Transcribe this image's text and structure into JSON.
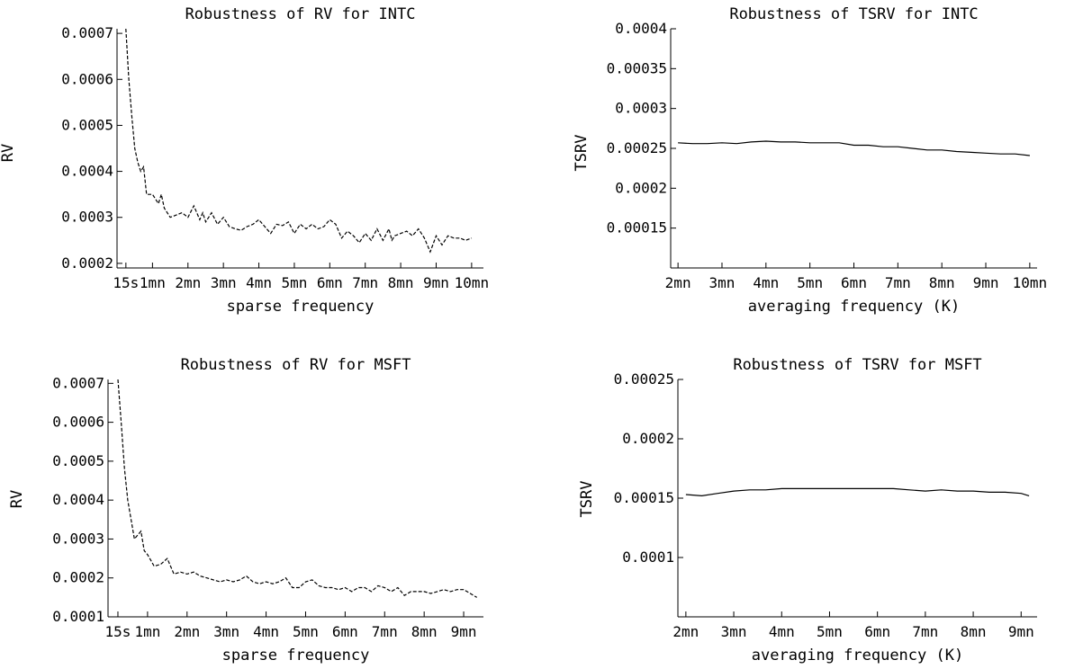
{
  "chart_data": [
    {
      "type": "line",
      "title": "Robustness of RV for INTC",
      "xlabel": "sparse frequency",
      "ylabel": "RV",
      "x_ticks": [
        "15s",
        "1mn",
        "2mn",
        "3mn",
        "4mn",
        "5mn",
        "6mn",
        "7mn",
        "8mn",
        "9mn",
        "10mn"
      ],
      "x_tick_values": [
        15,
        60,
        120,
        180,
        240,
        300,
        360,
        420,
        480,
        540,
        600
      ],
      "y_ticks": [
        "0.0002",
        "0.0003",
        "0.0004",
        "0.0005",
        "0.0006",
        "0.0007"
      ],
      "y_tick_values": [
        0.0002,
        0.0003,
        0.0004,
        0.0005,
        0.0006,
        0.0007
      ],
      "xlim": [
        0,
        620
      ],
      "ylim": [
        0.00019,
        0.00071
      ],
      "line_style": "dashed",
      "series": [
        {
          "x": [
            15,
            20,
            25,
            30,
            35,
            40,
            45,
            50,
            55,
            60,
            65,
            70,
            75,
            80,
            90,
            100,
            110,
            120,
            130,
            140,
            145,
            150,
            155,
            160,
            170,
            180,
            190,
            200,
            210,
            220,
            230,
            240,
            250,
            260,
            270,
            280,
            290,
            300,
            310,
            320,
            330,
            340,
            350,
            360,
            370,
            380,
            390,
            400,
            410,
            420,
            430,
            440,
            450,
            460,
            465,
            470,
            480,
            490,
            500,
            510,
            520,
            530,
            540,
            550,
            560,
            570,
            580,
            590,
            600
          ],
          "y": [
            0.00071,
            0.0006,
            0.00052,
            0.00045,
            0.00042,
            0.0004,
            0.00041,
            0.00035,
            0.00035,
            0.00035,
            0.00034,
            0.00033,
            0.00035,
            0.00032,
            0.0003,
            0.000305,
            0.00031,
            0.0003,
            0.000325,
            0.000295,
            0.00031,
            0.00029,
            0.0003,
            0.00031,
            0.000285,
            0.0003,
            0.00028,
            0.000275,
            0.000272,
            0.00028,
            0.000285,
            0.000295,
            0.00028,
            0.000265,
            0.000285,
            0.000282,
            0.00029,
            0.000265,
            0.000285,
            0.000275,
            0.000285,
            0.000275,
            0.00028,
            0.000295,
            0.000285,
            0.000255,
            0.00027,
            0.00026,
            0.000245,
            0.000265,
            0.00025,
            0.000275,
            0.00025,
            0.000275,
            0.00025,
            0.00026,
            0.000265,
            0.00027,
            0.00026,
            0.000275,
            0.000255,
            0.000225,
            0.00026,
            0.00024,
            0.00026,
            0.000255,
            0.000255,
            0.00025,
            0.000255
          ]
        }
      ]
    },
    {
      "type": "line",
      "title": "Robustness of TSRV for INTC",
      "xlabel": "averaging frequency (K)",
      "ylabel": "TSRV",
      "x_ticks": [
        "2mn",
        "3mn",
        "4mn",
        "5mn",
        "6mn",
        "7mn",
        "8mn",
        "9mn",
        "10mn"
      ],
      "x_tick_values": [
        120,
        180,
        240,
        300,
        360,
        420,
        480,
        540,
        600
      ],
      "y_ticks": [
        "0.00015",
        "0.0002",
        "0.00025",
        "0.0003",
        "0.00035",
        "0.0004"
      ],
      "y_tick_values": [
        0.00015,
        0.0002,
        0.00025,
        0.0003,
        0.00035,
        0.0004
      ],
      "xlim": [
        110,
        610
      ],
      "ylim": [
        0.0001,
        0.0004
      ],
      "line_style": "solid",
      "series": [
        {
          "x": [
            120,
            140,
            160,
            180,
            200,
            220,
            240,
            260,
            280,
            300,
            320,
            340,
            360,
            380,
            400,
            420,
            440,
            460,
            480,
            500,
            520,
            540,
            560,
            580,
            600
          ],
          "y": [
            0.000257,
            0.000256,
            0.000256,
            0.000257,
            0.000256,
            0.000258,
            0.000259,
            0.000258,
            0.000258,
            0.000257,
            0.000257,
            0.000257,
            0.000254,
            0.000254,
            0.000252,
            0.000252,
            0.00025,
            0.000248,
            0.000248,
            0.000246,
            0.000245,
            0.000244,
            0.000243,
            0.000243,
            0.000241
          ]
        }
      ]
    },
    {
      "type": "line",
      "title": "Robustness of RV for MSFT",
      "xlabel": "sparse frequency",
      "ylabel": "RV",
      "x_ticks": [
        "15s",
        "1mn",
        "2mn",
        "3mn",
        "4mn",
        "5mn",
        "6mn",
        "7mn",
        "8mn",
        "9mn"
      ],
      "x_tick_values": [
        15,
        60,
        120,
        180,
        240,
        300,
        360,
        420,
        480,
        540
      ],
      "y_ticks": [
        "0.0001",
        "0.0002",
        "0.0003",
        "0.0004",
        "0.0005",
        "0.0006",
        "0.0007"
      ],
      "y_tick_values": [
        0.0001,
        0.0002,
        0.0003,
        0.0004,
        0.0005,
        0.0006,
        0.0007
      ],
      "xlim": [
        0,
        570
      ],
      "ylim": [
        0.0001,
        0.00071
      ],
      "line_style": "dashed",
      "series": [
        {
          "x": [
            15,
            20,
            25,
            30,
            35,
            40,
            45,
            50,
            55,
            60,
            65,
            70,
            80,
            90,
            100,
            110,
            120,
            130,
            140,
            150,
            160,
            170,
            180,
            190,
            200,
            210,
            220,
            230,
            240,
            250,
            260,
            270,
            280,
            290,
            300,
            310,
            320,
            330,
            340,
            350,
            360,
            370,
            380,
            390,
            400,
            410,
            420,
            430,
            440,
            450,
            460,
            470,
            480,
            490,
            500,
            510,
            520,
            530,
            540,
            550,
            560
          ],
          "y": [
            0.00071,
            0.0006,
            0.00048,
            0.0004,
            0.00035,
            0.0003,
            0.00031,
            0.00032,
            0.00027,
            0.00026,
            0.000245,
            0.00023,
            0.000235,
            0.00025,
            0.00021,
            0.000215,
            0.00021,
            0.000215,
            0.000205,
            0.0002,
            0.000195,
            0.00019,
            0.000195,
            0.00019,
            0.000195,
            0.000205,
            0.00019,
            0.000185,
            0.00019,
            0.000185,
            0.00019,
            0.0002,
            0.000175,
            0.000175,
            0.00019,
            0.000195,
            0.00018,
            0.000175,
            0.000175,
            0.00017,
            0.000175,
            0.000165,
            0.000175,
            0.000175,
            0.000165,
            0.00018,
            0.000175,
            0.000165,
            0.000175,
            0.000155,
            0.000165,
            0.000165,
            0.000165,
            0.00016,
            0.000165,
            0.00017,
            0.000165,
            0.00017,
            0.00017,
            0.00016,
            0.00015
          ]
        }
      ]
    },
    {
      "type": "line",
      "title": "Robustness of TSRV for MSFT",
      "xlabel": "averaging frequency (K)",
      "ylabel": "TSRV",
      "x_ticks": [
        "2mn",
        "3mn",
        "4mn",
        "5mn",
        "6mn",
        "7mn",
        "8mn",
        "9mn"
      ],
      "x_tick_values": [
        120,
        180,
        240,
        300,
        360,
        420,
        480,
        540
      ],
      "y_ticks": [
        "0.0001",
        "0.00015",
        "0.0002",
        "0.00025"
      ],
      "y_tick_values": [
        0.0001,
        0.00015,
        0.0002,
        0.00025
      ],
      "xlim": [
        110,
        560
      ],
      "ylim": [
        5e-05,
        0.00025
      ],
      "line_style": "solid",
      "series": [
        {
          "x": [
            120,
            140,
            160,
            180,
            200,
            220,
            240,
            260,
            280,
            300,
            320,
            340,
            360,
            380,
            400,
            420,
            440,
            460,
            480,
            500,
            520,
            540,
            550
          ],
          "y": [
            0.000153,
            0.000152,
            0.000154,
            0.000156,
            0.000157,
            0.000157,
            0.000158,
            0.000158,
            0.000158,
            0.000158,
            0.000158,
            0.000158,
            0.000158,
            0.000158,
            0.000157,
            0.000156,
            0.000157,
            0.000156,
            0.000156,
            0.000155,
            0.000155,
            0.000154,
            0.000152
          ]
        }
      ]
    }
  ]
}
